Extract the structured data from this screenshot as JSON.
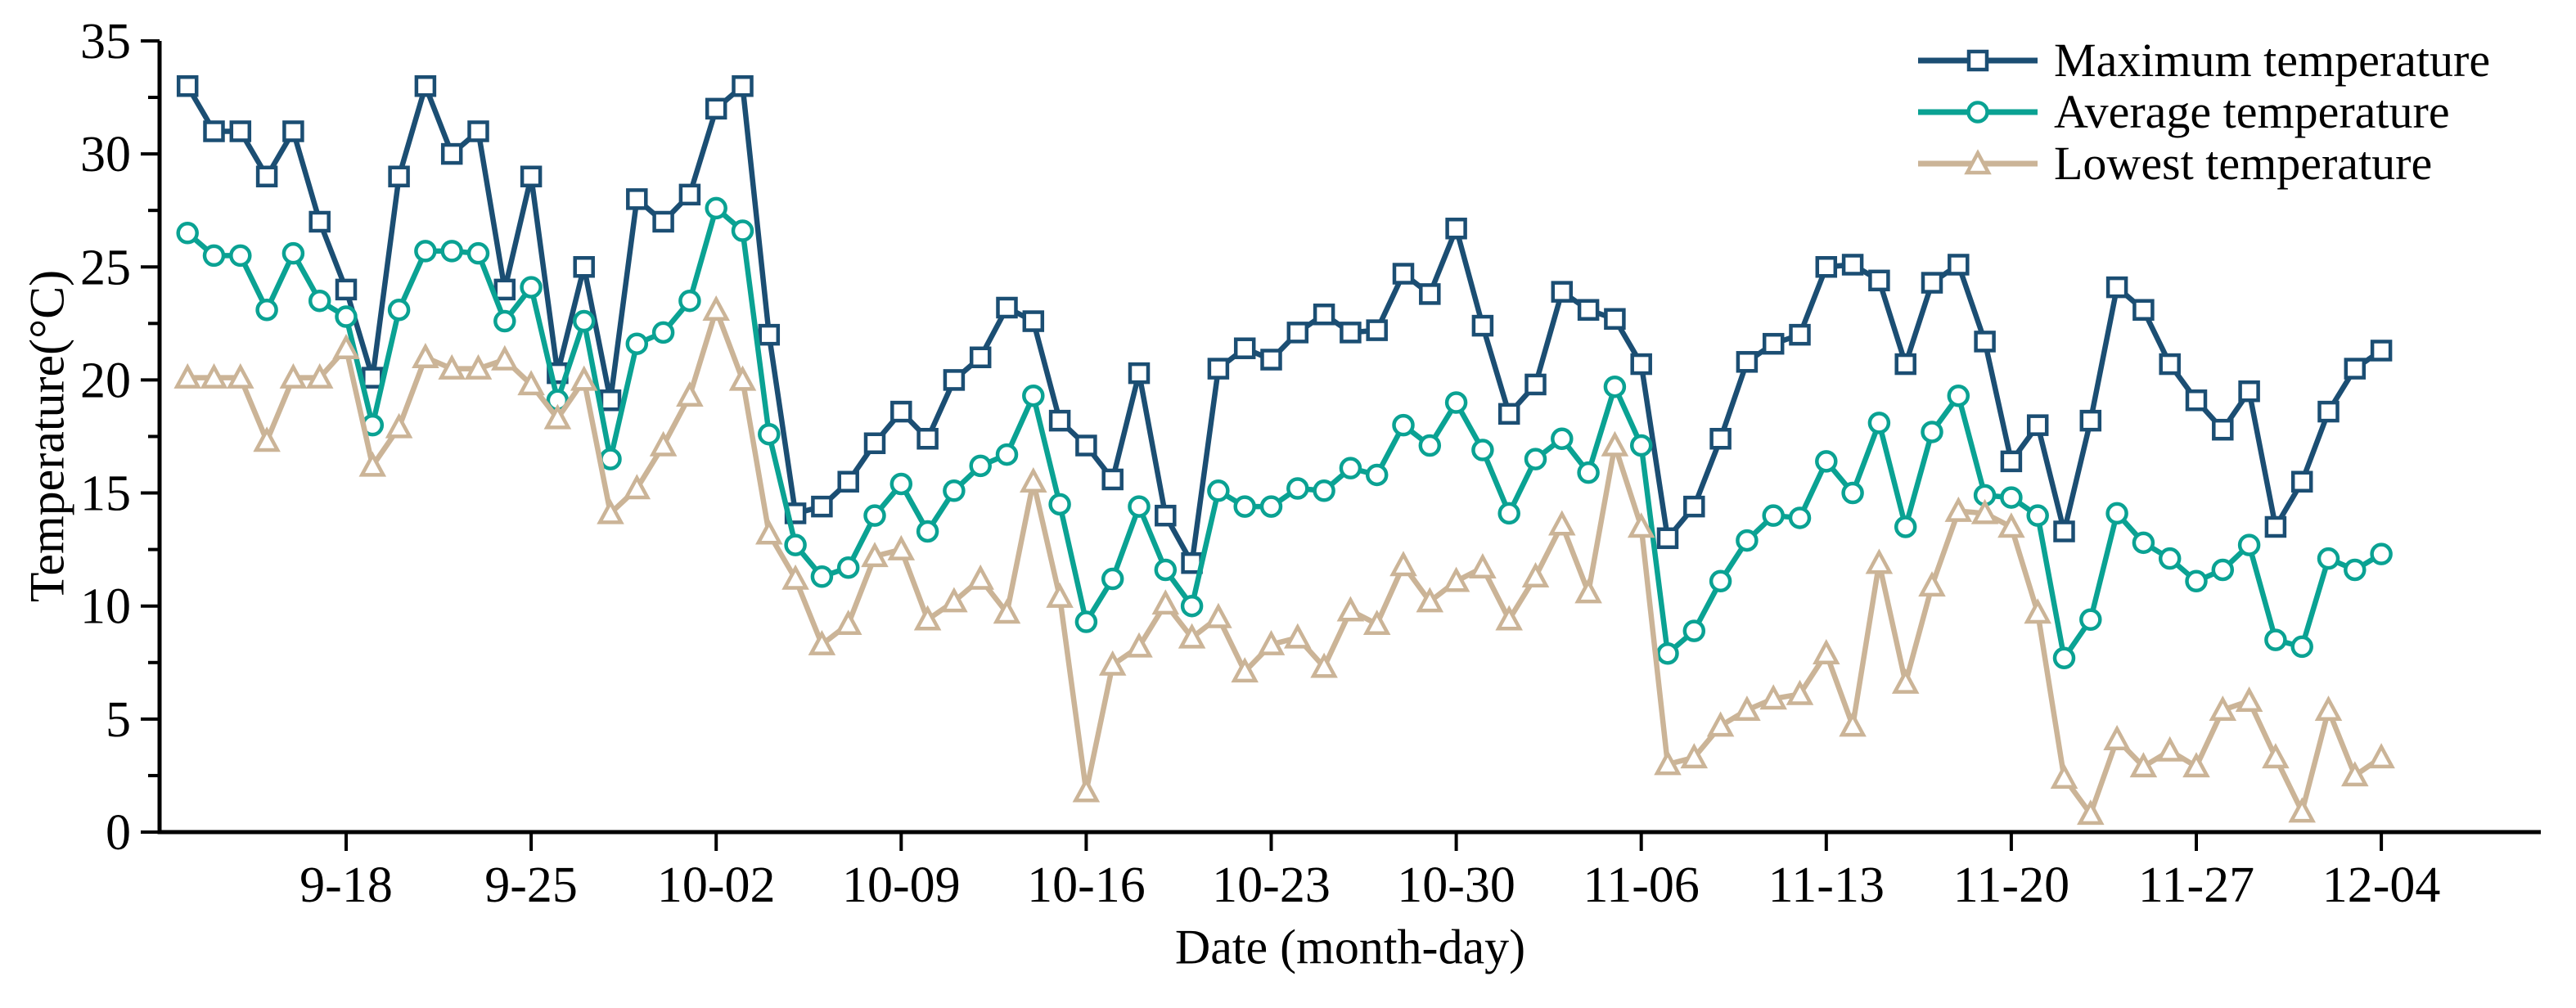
{
  "figure": {
    "ylabel": "Temperature(°C)",
    "xlabel": "Date (month-day)"
  },
  "legend": {
    "items": [
      {
        "label": "Maximum temperature"
      },
      {
        "label": "Average temperature"
      },
      {
        "label": "Lowest temperature"
      }
    ]
  },
  "chart_data": {
    "type": "line",
    "title": "",
    "xlabel": "Date (month-day)",
    "ylabel": "Temperature(°C)",
    "ylim": [
      0,
      35
    ],
    "grid": false,
    "legend_position": "top-right",
    "axis_color": "#000000",
    "y_ticks": [
      0,
      5,
      10,
      15,
      20,
      25,
      30,
      35
    ],
    "y_minor_ticks": [
      2.5,
      7.5,
      12.5,
      17.5,
      22.5,
      27.5,
      32.5
    ],
    "x_tick_labels": [
      "9-18",
      "9-25",
      "10-02",
      "10-09",
      "10-16",
      "10-23",
      "10-30",
      "11-06",
      "11-13",
      "11-20",
      "11-27",
      "12-04"
    ],
    "x": [
      "9-12",
      "9-13",
      "9-14",
      "9-15",
      "9-16",
      "9-17",
      "9-18",
      "9-19",
      "9-20",
      "9-21",
      "9-22",
      "9-23",
      "9-24",
      "9-25",
      "9-26",
      "9-27",
      "9-28",
      "9-29",
      "9-30",
      "10-01",
      "10-02",
      "10-03",
      "10-04",
      "10-05",
      "10-06",
      "10-07",
      "10-08",
      "10-09",
      "10-10",
      "10-11",
      "10-12",
      "10-13",
      "10-14",
      "10-15",
      "10-16",
      "10-17",
      "10-18",
      "10-19",
      "10-20",
      "10-21",
      "10-22",
      "10-23",
      "10-24",
      "10-25",
      "10-26",
      "10-27",
      "10-28",
      "10-29",
      "10-30",
      "10-31",
      "11-01",
      "11-02",
      "11-03",
      "11-04",
      "11-05",
      "11-06",
      "11-07",
      "11-08",
      "11-09",
      "11-10",
      "11-11",
      "11-12",
      "11-13",
      "11-14",
      "11-15",
      "11-16",
      "11-17",
      "11-18",
      "11-19",
      "11-20",
      "11-21",
      "11-22",
      "11-23",
      "11-24",
      "11-25",
      "11-26",
      "11-27",
      "11-28",
      "11-29",
      "11-30",
      "12-01",
      "12-02",
      "12-03",
      "12-04"
    ],
    "series": [
      {
        "name": "Maximum temperature",
        "marker": "square",
        "color": "#1b4e73",
        "values": [
          33.0,
          31.0,
          31.0,
          29.0,
          31.0,
          27.0,
          24.0,
          20.1,
          29.0,
          33.0,
          30.0,
          31.0,
          24.0,
          29.0,
          20.3,
          25.0,
          19.1,
          28.0,
          27.0,
          28.2,
          32.0,
          33.0,
          22.0,
          14.1,
          14.4,
          15.5,
          17.2,
          18.6,
          17.4,
          20.0,
          21.0,
          23.2,
          22.6,
          18.2,
          17.1,
          15.6,
          20.3,
          14.0,
          11.9,
          20.5,
          21.4,
          20.9,
          22.1,
          22.9,
          22.1,
          22.2,
          24.7,
          23.8,
          26.7,
          22.4,
          18.5,
          19.8,
          23.9,
          23.1,
          22.7,
          20.7,
          13.0,
          14.4,
          17.4,
          20.8,
          21.6,
          22.0,
          25.0,
          25.1,
          24.4,
          20.7,
          24.3,
          25.1,
          21.7,
          16.4,
          18.0,
          13.3,
          18.2,
          24.1,
          23.1,
          20.7,
          19.1,
          17.8,
          19.5,
          13.5,
          15.5,
          18.6,
          20.5,
          21.3
        ]
      },
      {
        "name": "Average temperature",
        "marker": "circle",
        "color": "#0aa293",
        "values": [
          26.5,
          25.5,
          25.5,
          23.1,
          25.6,
          23.5,
          22.8,
          18.0,
          23.1,
          25.7,
          25.7,
          25.6,
          22.6,
          24.1,
          19.1,
          22.6,
          16.5,
          21.6,
          22.1,
          23.5,
          27.6,
          26.6,
          17.6,
          12.7,
          11.3,
          11.7,
          14.0,
          15.4,
          13.3,
          15.1,
          16.2,
          16.7,
          19.3,
          14.5,
          9.3,
          11.2,
          14.4,
          11.6,
          10.0,
          15.1,
          14.4,
          14.4,
          15.2,
          15.1,
          16.1,
          15.8,
          18.0,
          17.1,
          19.0,
          16.9,
          14.1,
          16.5,
          17.4,
          15.9,
          19.7,
          17.1,
          7.9,
          8.9,
          11.1,
          12.9,
          14.0,
          13.9,
          16.4,
          15.0,
          18.1,
          13.5,
          17.7,
          19.3,
          14.9,
          14.8,
          14.0,
          7.7,
          9.4,
          14.1,
          12.8,
          12.1,
          11.1,
          11.6,
          12.7,
          8.5,
          8.2,
          12.1,
          11.6,
          12.3
        ]
      },
      {
        "name": "Lowest temperature",
        "marker": "triangle",
        "color": "#cbb497",
        "values": [
          20.1,
          20.1,
          20.1,
          17.3,
          20.1,
          20.1,
          21.4,
          16.2,
          17.9,
          21.0,
          20.5,
          20.5,
          20.9,
          19.8,
          18.3,
          20.0,
          14.1,
          15.2,
          17.1,
          19.3,
          23.1,
          20.0,
          13.2,
          11.2,
          8.3,
          9.2,
          12.2,
          12.5,
          9.4,
          10.2,
          11.2,
          9.7,
          15.5,
          10.4,
          1.8,
          7.4,
          8.2,
          10.1,
          8.6,
          9.5,
          7.1,
          8.3,
          8.6,
          7.3,
          9.8,
          9.2,
          11.8,
          10.2,
          11.1,
          11.7,
          9.4,
          11.3,
          13.6,
          10.6,
          17.1,
          13.5,
          3.0,
          3.3,
          4.7,
          5.4,
          5.9,
          6.1,
          7.9,
          4.7,
          11.9,
          6.6,
          10.9,
          14.2,
          14.1,
          13.5,
          9.7,
          2.4,
          0.8,
          4.1,
          2.9,
          3.6,
          2.9,
          5.4,
          5.8,
          3.3,
          0.9,
          5.4,
          2.5,
          3.3
        ]
      }
    ]
  }
}
